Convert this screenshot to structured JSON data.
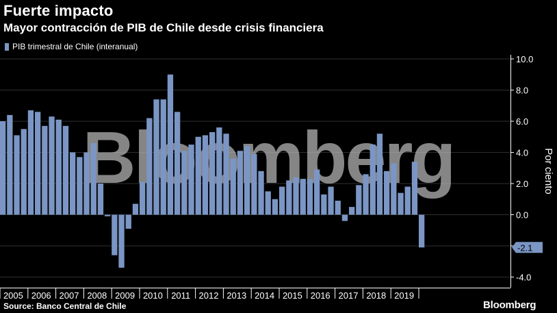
{
  "header": {
    "title": "Fuerte impacto",
    "subtitle": "Mayor contracción de PIB de Chile desde crisis financiera"
  },
  "footer": {
    "source": "Source: Banco Central de Chile",
    "brand": "Bloomberg"
  },
  "colors": {
    "background": "#000000",
    "bar": "#7b96c4",
    "gridline": "#2f2f2f",
    "axis": "#ffffff",
    "callout": "#7b96c4",
    "watermark": "#b9b9b9"
  },
  "chart_data": {
    "type": "bar",
    "title": "Fuerte impacto",
    "subtitle": "Mayor contracción de PIB de Chile desde crisis financiera",
    "ylabel": "Por ciento",
    "ylim": [
      -4.5,
      10.5
    ],
    "yticks": [
      10.0,
      8.0,
      6.0,
      4.0,
      2.0,
      0.0,
      -2.0,
      -4.0
    ],
    "ytick_labels": [
      "10.0",
      "8.0",
      "6.0",
      "4.0",
      "2.0",
      "0.0",
      "-2.0",
      "-4.0"
    ],
    "y_axis_side": "right",
    "grid": true,
    "legend_position": "top-left",
    "watermark": "Bloomberg",
    "years": [
      "2005",
      "2006",
      "2007",
      "2008",
      "2009",
      "2010",
      "2011",
      "2012",
      "2013",
      "2014",
      "2015",
      "2016",
      "2017",
      "2018",
      "2019"
    ],
    "callout": {
      "label": "-2.1",
      "value": -2.1
    },
    "series": [
      {
        "name": "PIB trimestral de Chile (interanual)",
        "values": [
          6.0,
          6.4,
          5.1,
          5.5,
          6.7,
          6.6,
          5.7,
          6.3,
          6.1,
          5.7,
          4.0,
          3.7,
          4.0,
          4.6,
          2.0,
          -0.1,
          -2.6,
          -3.4,
          -0.9,
          0.7,
          2.1,
          6.2,
          7.4,
          7.4,
          9.0,
          6.6,
          4.1,
          4.5,
          5.0,
          5.1,
          5.3,
          5.6,
          5.2,
          3.6,
          4.1,
          4.4,
          3.9,
          2.8,
          1.5,
          1.0,
          1.8,
          2.2,
          2.4,
          2.3,
          2.3,
          2.9,
          1.3,
          1.8,
          0.9,
          -0.4,
          0.5,
          1.9,
          2.6,
          4.5,
          5.2,
          2.8,
          3.3,
          1.4,
          1.8,
          3.4,
          -2.1
        ]
      }
    ]
  }
}
